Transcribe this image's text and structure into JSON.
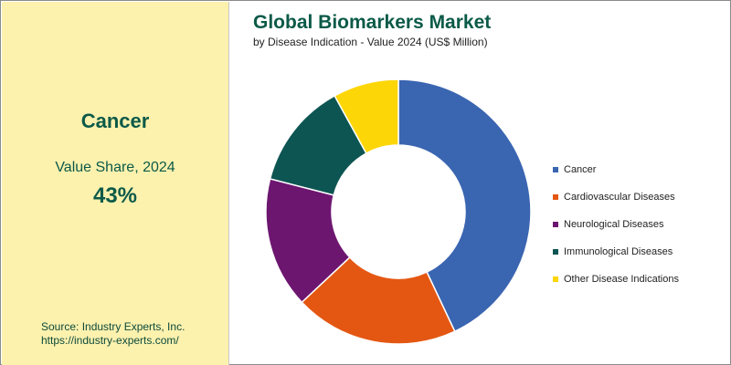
{
  "highlight": {
    "segment": "Cancer",
    "label": "Value Share, 2024",
    "value": "43%"
  },
  "source": {
    "line1": "Source: Industry Experts, Inc.",
    "line2": "https://industry-experts.com/"
  },
  "chart_data": {
    "type": "pie",
    "donut": true,
    "title": "Global Biomarkers Market",
    "subtitle": "by Disease Indication - Value 2024 (US$ Million)",
    "legend_position": "right",
    "slices": [
      {
        "name": "Cancer",
        "value": 43,
        "color": "#3a65b1"
      },
      {
        "name": "Cardiovascular Diseases",
        "value": 20,
        "color": "#e45712"
      },
      {
        "name": "Neurological Diseases",
        "value": 16,
        "color": "#6d1670"
      },
      {
        "name": "Immunological Diseases",
        "value": 13,
        "color": "#0d5552"
      },
      {
        "name": "Other Disease Indications",
        "value": 8,
        "color": "#fdd608"
      }
    ]
  }
}
